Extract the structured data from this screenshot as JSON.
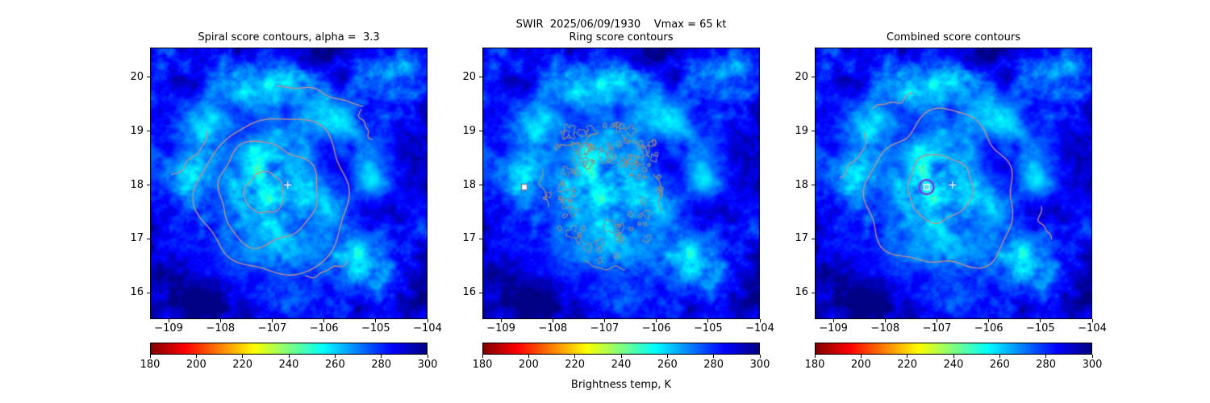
{
  "figure": {
    "suptitle": "SWIR  2025/06/09/1930    Vmax = 65 kt"
  },
  "panels": [
    {
      "title": "Spiral score contours, alpha =  3.3"
    },
    {
      "title": "Ring score contours"
    },
    {
      "title": "Combined score contours"
    }
  ],
  "colorbar": {
    "label": "Brightness temp, K",
    "tick_labels": [
      "180",
      "200",
      "220",
      "240",
      "260",
      "280",
      "300"
    ],
    "tick_values": [
      180,
      200,
      220,
      240,
      260,
      280,
      300
    ],
    "colormap": "jet_r",
    "range": [
      180,
      300
    ]
  },
  "axes": {
    "x_tick_labels": [
      "−109",
      "−108",
      "−107",
      "−106",
      "−105",
      "−104"
    ],
    "x_tick_values": [
      -109,
      -108,
      -107,
      -106,
      -105,
      -104
    ],
    "y_tick_labels": [
      "20",
      "19",
      "18",
      "17",
      "16"
    ],
    "y_tick_values": [
      20,
      19,
      18,
      17,
      16
    ],
    "xlim": [
      -109.36,
      -104.0
    ],
    "ylim": [
      15.51,
      20.55
    ]
  },
  "chart_data": [
    {
      "type": "heatmap",
      "panel": "spiral",
      "title": "Spiral score contours, alpha =  3.3",
      "xlim": [
        -109.36,
        -104.0
      ],
      "ylim": [
        15.51,
        20.55
      ],
      "x_ticks": [
        -109,
        -108,
        -107,
        -106,
        -105,
        -104
      ],
      "y_ticks": [
        16,
        17,
        18,
        19,
        20
      ],
      "colormap": "jet_r",
      "value_range": [
        180,
        300
      ],
      "colorbar_ticks": [
        180,
        200,
        220,
        240,
        260,
        280,
        300
      ],
      "colorbar_label": "Brightness temp, K",
      "image_description": "SWIR brightness temperature: cold cloud shield 235-255 K (cyan/green) around storm center near (-107.0, 17.9); warm mottled ocean background 280-300 K (blue/navy); outer spiral band arcing over the north side near lat 19-19.8; cold patches SE near (-105.2, 16.6) and E near (-105.0, 18.2)",
      "contours": {
        "color": "#bc8f8f",
        "loops": [
          {
            "cx": -107.15,
            "cy": 17.85,
            "r": 0.38,
            "wob": 0.1
          },
          {
            "cx": -107.1,
            "cy": 17.85,
            "r": 0.95,
            "wob": 0.13
          },
          {
            "cx": -106.95,
            "cy": 17.8,
            "r": 1.45,
            "wob": 0.1
          }
        ],
        "arcs": [
          {
            "from": [
              -108.95,
              18.2
            ],
            "to": [
              -108.25,
              19.0
            ],
            "bulge": 0.25
          },
          {
            "from": [
              -106.9,
              19.85
            ],
            "to": [
              -105.25,
              19.45
            ],
            "bulge": -0.14
          },
          {
            "from": [
              -105.3,
              19.4
            ],
            "to": [
              -105.05,
              18.85
            ],
            "bulge": 0.1
          },
          {
            "from": [
              -106.35,
              16.3
            ],
            "to": [
              -105.55,
              16.6
            ],
            "bulge": 0.1
          }
        ]
      },
      "markers": [
        {
          "type": "plus",
          "x": -106.7,
          "y": 18.0,
          "color": "#ffffff"
        }
      ]
    },
    {
      "type": "heatmap",
      "panel": "ring",
      "title": "Ring score contours",
      "xlim": [
        -109.36,
        -104.0
      ],
      "ylim": [
        15.51,
        20.55
      ],
      "x_ticks": [
        -109,
        -108,
        -107,
        -106,
        -105,
        -104
      ],
      "y_ticks": [
        16,
        17,
        18,
        19,
        20
      ],
      "colormap": "jet_r",
      "value_range": [
        180,
        300
      ],
      "colorbar_ticks": [
        180,
        200,
        220,
        240,
        260,
        280,
        300
      ],
      "colorbar_label": "Brightness temp, K",
      "image_description": "Same SWIR brightness temperature image as left panel",
      "contours": {
        "color": "#8c8c8c",
        "speckle_ring": {
          "cx": -107.0,
          "cy": 17.85,
          "r_inner": 0.6,
          "r_outer": 1.35,
          "count": 90
        },
        "arcs": [
          {
            "from": [
              -107.95,
              18.7
            ],
            "to": [
              -107.15,
              18.95
            ],
            "bulge": 0.12
          },
          {
            "from": [
              -106.7,
              18.9
            ],
            "to": [
              -106.1,
              18.55
            ],
            "bulge": -0.1
          },
          {
            "from": [
              -108.2,
              18.3
            ],
            "to": [
              -108.05,
              17.6
            ],
            "bulge": 0.15
          },
          {
            "from": [
              -106.0,
              18.2
            ],
            "to": [
              -105.95,
              17.5
            ],
            "bulge": -0.12
          },
          {
            "from": [
              -107.4,
              16.55
            ],
            "to": [
              -106.6,
              16.45
            ],
            "bulge": 0.08
          }
        ]
      },
      "markers": [
        {
          "type": "square",
          "x": -108.55,
          "y": 17.96,
          "fill": "#ffffff",
          "edge": "#777777"
        }
      ]
    },
    {
      "type": "heatmap",
      "panel": "combined",
      "title": "Combined score contours",
      "xlim": [
        -109.36,
        -104.0
      ],
      "ylim": [
        15.51,
        20.55
      ],
      "x_ticks": [
        -109,
        -108,
        -107,
        -106,
        -105,
        -104
      ],
      "y_ticks": [
        16,
        17,
        18,
        19,
        20
      ],
      "colormap": "jet_r",
      "value_range": [
        180,
        300
      ],
      "colorbar_ticks": [
        180,
        200,
        220,
        240,
        260,
        280,
        300
      ],
      "colorbar_label": "Brightness temp, K",
      "image_description": "Same SWIR brightness temperature image as left panel",
      "contours": {
        "color": "#bc8f8f",
        "loops": [
          {
            "cx": -106.95,
            "cy": 17.95,
            "r": 0.62,
            "wob": 0.1
          },
          {
            "cx": -106.9,
            "cy": 17.85,
            "r": 1.42,
            "wob": 0.16
          }
        ],
        "arcs": [
          {
            "from": [
              -108.9,
              18.15
            ],
            "to": [
              -108.35,
              18.95
            ],
            "bulge": 0.2
          },
          {
            "from": [
              -108.25,
              19.45
            ],
            "to": [
              -107.45,
              19.7
            ],
            "bulge": 0.1
          },
          {
            "from": [
              -105.0,
              17.6
            ],
            "to": [
              -104.75,
              17.0
            ],
            "bulge": 0.2
          }
        ]
      },
      "markers": [
        {
          "type": "circle",
          "x": -107.2,
          "y": 17.96,
          "r_deg": 0.14,
          "color": "#8a2be2"
        },
        {
          "type": "square",
          "x": -107.2,
          "y": 17.96,
          "fill": "#6fd8e8",
          "edge": "#ffffff"
        },
        {
          "type": "plus",
          "x": -106.7,
          "y": 18.0,
          "color": "#ffffff"
        }
      ]
    }
  ]
}
